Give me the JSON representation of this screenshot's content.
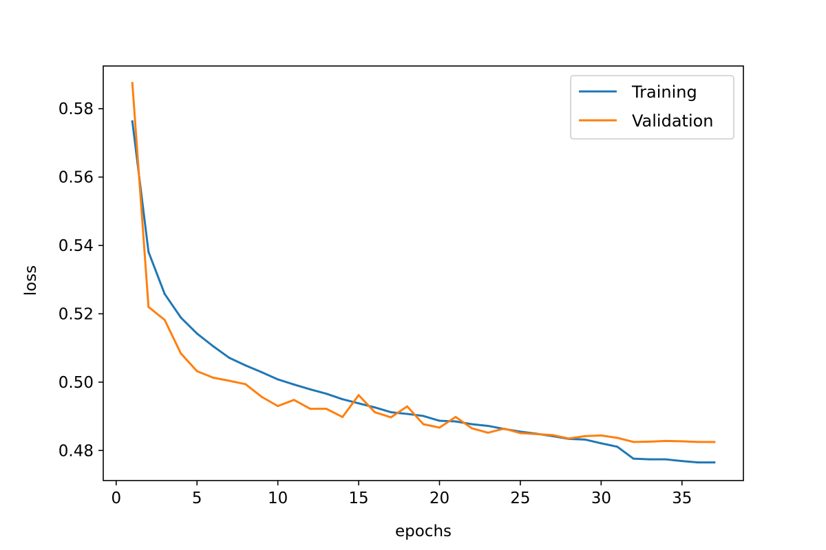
{
  "chart_data": {
    "type": "line",
    "title": "",
    "xlabel": "epochs",
    "ylabel": "loss",
    "xlim": [
      -0.8,
      38.8
    ],
    "ylim": [
      0.4712,
      0.5925
    ],
    "xticks": [
      0,
      5,
      10,
      15,
      20,
      25,
      30,
      35
    ],
    "yticks": [
      0.48,
      0.5,
      0.52,
      0.54,
      0.56,
      0.58
    ],
    "ytick_labels": [
      "0.48",
      "0.50",
      "0.52",
      "0.54",
      "0.56",
      "0.58"
    ],
    "grid": false,
    "legend_position": "upper right",
    "x": [
      1,
      2,
      3,
      4,
      5,
      6,
      7,
      8,
      9,
      10,
      11,
      12,
      13,
      14,
      15,
      16,
      17,
      18,
      19,
      20,
      21,
      22,
      23,
      24,
      25,
      26,
      27,
      28,
      29,
      30,
      31,
      32,
      33,
      34,
      35,
      36,
      37
    ],
    "series": [
      {
        "name": "Training",
        "color": "#1f77b4",
        "values": [
          0.5763,
          0.5381,
          0.5258,
          0.5189,
          0.5142,
          0.5105,
          0.5071,
          0.5049,
          0.5029,
          0.5008,
          0.4993,
          0.4979,
          0.4966,
          0.495,
          0.4938,
          0.4926,
          0.4912,
          0.4907,
          0.4901,
          0.4887,
          0.4885,
          0.4877,
          0.4872,
          0.4863,
          0.4855,
          0.4849,
          0.4842,
          0.4834,
          0.4832,
          0.4821,
          0.4811,
          0.4776,
          0.4774,
          0.4774,
          0.4769,
          0.4765,
          0.4765
        ]
      },
      {
        "name": "Validation",
        "color": "#ff7f0e",
        "values": [
          0.5875,
          0.522,
          0.5182,
          0.5084,
          0.5032,
          0.5013,
          0.5004,
          0.4994,
          0.4957,
          0.493,
          0.4948,
          0.4922,
          0.4922,
          0.4898,
          0.4962,
          0.4912,
          0.4897,
          0.4929,
          0.4877,
          0.4867,
          0.4898,
          0.4865,
          0.4852,
          0.4864,
          0.4851,
          0.4848,
          0.4845,
          0.4835,
          0.4842,
          0.4844,
          0.4837,
          0.4825,
          0.4826,
          0.4828,
          0.4827,
          0.4825,
          0.4825
        ]
      }
    ]
  }
}
